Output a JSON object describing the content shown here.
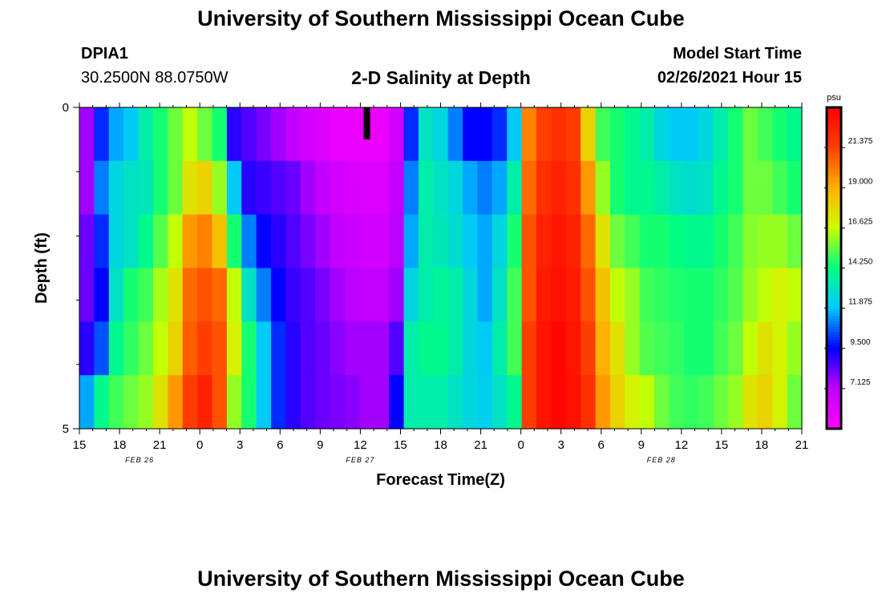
{
  "header": {
    "title": "University of Southern Mississippi Ocean Cube",
    "station_id": "DPIA1",
    "station_coords": "30.2500N 88.0750W",
    "model_start_label": "Model Start Time",
    "model_start_value": "02/26/2021 Hour 15"
  },
  "footer": {
    "title": "University of Southern Mississippi Ocean Cube"
  },
  "chart_data": {
    "type": "heatmap",
    "title": "2-D Salinity at Depth",
    "xlabel": "Forecast Time(Z)",
    "ylabel": "Depth (ft)",
    "x_start": "02/26/2021 Hour 15",
    "x_step_hours": 1,
    "x_ticks": [
      "15",
      "18",
      "21",
      "0",
      "3",
      "6",
      "9",
      "12",
      "15",
      "18",
      "21",
      "0",
      "3",
      "6",
      "9",
      "12",
      "15",
      "18",
      "21"
    ],
    "x_minor_ticks_per_major": 3,
    "date_labels": [
      {
        "label": "FEB 26",
        "at_tick": 1.5
      },
      {
        "label": "FEB 27",
        "at_tick": 7
      },
      {
        "label": "FEB 28",
        "at_tick": 14.5
      }
    ],
    "y_ticks": [
      "0",
      "5"
    ],
    "y_range": [
      0,
      5
    ],
    "y_minor_ticks": [
      1,
      2,
      3,
      4
    ],
    "depth_rows": [
      0,
      1,
      2,
      3,
      4,
      5
    ],
    "colorbar": {
      "unit": "psu",
      "vmin": 4.75,
      "vmax": 23.75,
      "tick_values": [
        7.125,
        9.5,
        11.875,
        14.25,
        16.625,
        19.0,
        21.375
      ],
      "tick_labels": [
        "7.125",
        "9.500",
        "11.875",
        "14.250",
        "16.625",
        "19.000",
        "21.375"
      ],
      "stops": [
        {
          "value": 4.75,
          "color": "#ff00ff"
        },
        {
          "value": 7.125,
          "color": "#c000ff"
        },
        {
          "value": 9.5,
          "color": "#0000ff"
        },
        {
          "value": 11.875,
          "color": "#00c8ff"
        },
        {
          "value": 14.25,
          "color": "#00ff80"
        },
        {
          "value": 16.625,
          "color": "#ccff00"
        },
        {
          "value": 19.0,
          "color": "#ffb000"
        },
        {
          "value": 21.375,
          "color": "#ff4000"
        },
        {
          "value": 23.75,
          "color": "#ff0000"
        }
      ]
    },
    "salinity_profiles": [
      {
        "x_hour": 0,
        "values": [
          7.5,
          7.5,
          8.2,
          8.2,
          9.0,
          11.5
        ]
      },
      {
        "x_hour": 1,
        "values": [
          10.0,
          11.0,
          10.0,
          9.5,
          10.5,
          14.0
        ]
      },
      {
        "x_hour": 2,
        "values": [
          11.5,
          12.5,
          12.5,
          13.0,
          14.0,
          15.0
        ]
      },
      {
        "x_hour": 3,
        "values": [
          12.0,
          13.0,
          13.0,
          14.5,
          14.8,
          15.5
        ]
      },
      {
        "x_hour": 4,
        "values": [
          13.5,
          13.2,
          14.0,
          15.0,
          15.5,
          16.0
        ]
      },
      {
        "x_hour": 5,
        "values": [
          14.5,
          14.5,
          15.2,
          16.2,
          16.5,
          17.5
        ]
      },
      {
        "x_hour": 6,
        "values": [
          15.5,
          15.5,
          16.5,
          17.5,
          18.0,
          19.5
        ]
      },
      {
        "x_hour": 7,
        "values": [
          16.5,
          17.5,
          19.5,
          20.5,
          20.8,
          21.5
        ]
      },
      {
        "x_hour": 8,
        "values": [
          15.5,
          18.0,
          20.0,
          21.0,
          21.5,
          22.5
        ]
      },
      {
        "x_hour": 9,
        "values": [
          14.5,
          16.0,
          18.5,
          20.5,
          21.0,
          21.0
        ]
      },
      {
        "x_hour": 10,
        "values": [
          9.0,
          12.0,
          14.5,
          16.5,
          17.0,
          16.0
        ]
      },
      {
        "x_hour": 11,
        "values": [
          8.5,
          9.0,
          11.0,
          13.0,
          14.5,
          14.5
        ]
      },
      {
        "x_hour": 12,
        "values": [
          8.0,
          8.8,
          9.5,
          11.0,
          12.0,
          12.0
        ]
      },
      {
        "x_hour": 13,
        "values": [
          7.5,
          8.5,
          9.0,
          9.5,
          10.0,
          10.0
        ]
      },
      {
        "x_hour": 14,
        "values": [
          7.0,
          8.2,
          8.5,
          8.8,
          9.0,
          9.0
        ]
      },
      {
        "x_hour": 15,
        "values": [
          6.5,
          7.5,
          8.0,
          8.5,
          8.5,
          8.5
        ]
      },
      {
        "x_hour": 16,
        "values": [
          6.0,
          7.0,
          7.5,
          8.0,
          8.2,
          8.2
        ]
      },
      {
        "x_hour": 17,
        "values": [
          5.5,
          6.5,
          7.0,
          7.5,
          7.8,
          8.0
        ]
      },
      {
        "x_hour": 18,
        "values": [
          5.5,
          6.2,
          6.8,
          7.2,
          7.5,
          7.8
        ]
      },
      {
        "x_hour": 19,
        "values": [
          5.5,
          6.0,
          6.5,
          7.0,
          7.5,
          7.5
        ]
      },
      {
        "x_hour": 20,
        "values": [
          5.5,
          6.0,
          6.5,
          7.0,
          7.5,
          7.5
        ]
      },
      {
        "x_hour": 21,
        "values": [
          6.5,
          7.0,
          7.2,
          7.5,
          8.5,
          9.5
        ]
      },
      {
        "x_hour": 22,
        "values": [
          10.0,
          11.0,
          11.5,
          12.5,
          13.5,
          13.5
        ]
      },
      {
        "x_hour": 23,
        "values": [
          13.0,
          13.5,
          13.5,
          13.5,
          14.0,
          13.5
        ]
      },
      {
        "x_hour": 24,
        "values": [
          12.5,
          13.0,
          13.2,
          13.8,
          14.0,
          13.5
        ]
      },
      {
        "x_hour": 25,
        "values": [
          11.0,
          12.5,
          12.8,
          13.5,
          13.5,
          13.0
        ]
      },
      {
        "x_hour": 26,
        "values": [
          9.5,
          11.5,
          12.0,
          12.5,
          12.5,
          12.5
        ]
      },
      {
        "x_hour": 27,
        "values": [
          9.5,
          11.0,
          11.5,
          11.5,
          12.0,
          12.2
        ]
      },
      {
        "x_hour": 28,
        "values": [
          10.0,
          11.5,
          12.5,
          13.0,
          13.5,
          13.0
        ]
      },
      {
        "x_hour": 29,
        "values": [
          12.0,
          13.5,
          14.5,
          15.0,
          15.0,
          14.0
        ]
      },
      {
        "x_hour": 30,
        "values": [
          20.0,
          20.5,
          21.0,
          21.0,
          21.5,
          21.5
        ]
      },
      {
        "x_hour": 31,
        "values": [
          21.5,
          22.0,
          22.5,
          22.8,
          23.0,
          23.0
        ]
      },
      {
        "x_hour": 32,
        "values": [
          22.0,
          22.5,
          23.0,
          23.2,
          23.5,
          23.5
        ]
      },
      {
        "x_hour": 33,
        "values": [
          21.5,
          22.0,
          22.5,
          22.8,
          23.0,
          23.2
        ]
      },
      {
        "x_hour": 34,
        "values": [
          18.0,
          19.5,
          20.5,
          21.0,
          21.5,
          22.0
        ]
      },
      {
        "x_hour": 35,
        "values": [
          15.0,
          16.0,
          17.5,
          18.5,
          19.0,
          19.5
        ]
      },
      {
        "x_hour": 36,
        "values": [
          14.5,
          14.5,
          15.5,
          16.5,
          17.5,
          18.0
        ]
      },
      {
        "x_hour": 37,
        "values": [
          14.0,
          14.0,
          15.0,
          16.0,
          16.0,
          17.0
        ]
      },
      {
        "x_hour": 38,
        "values": [
          13.5,
          14.0,
          14.5,
          15.0,
          15.2,
          16.5
        ]
      },
      {
        "x_hour": 39,
        "values": [
          12.5,
          13.5,
          14.5,
          14.8,
          15.0,
          15.5
        ]
      },
      {
        "x_hour": 40,
        "values": [
          12.0,
          13.0,
          14.2,
          14.6,
          14.8,
          15.0
        ]
      },
      {
        "x_hour": 41,
        "values": [
          12.0,
          12.8,
          14.0,
          14.5,
          14.5,
          14.8
        ]
      },
      {
        "x_hour": 42,
        "values": [
          12.5,
          13.0,
          14.0,
          14.5,
          14.5,
          15.0
        ]
      },
      {
        "x_hour": 43,
        "values": [
          13.5,
          14.0,
          14.5,
          14.8,
          15.0,
          15.5
        ]
      },
      {
        "x_hour": 44,
        "values": [
          14.5,
          14.5,
          15.0,
          15.2,
          15.5,
          16.0
        ]
      },
      {
        "x_hour": 45,
        "values": [
          15.5,
          15.5,
          15.8,
          16.0,
          16.5,
          17.5
        ]
      },
      {
        "x_hour": 46,
        "values": [
          15.0,
          15.5,
          16.0,
          16.5,
          17.5,
          18.0
        ]
      },
      {
        "x_hour": 47,
        "values": [
          14.5,
          15.0,
          16.0,
          17.0,
          17.0,
          17.0
        ]
      },
      {
        "x_hour": 48,
        "values": [
          14.0,
          14.5,
          15.5,
          16.5,
          16.0,
          15.5
        ]
      }
    ],
    "missing_cells": [
      {
        "x_hour": 19,
        "depth": 0,
        "note": "no data"
      }
    ]
  }
}
